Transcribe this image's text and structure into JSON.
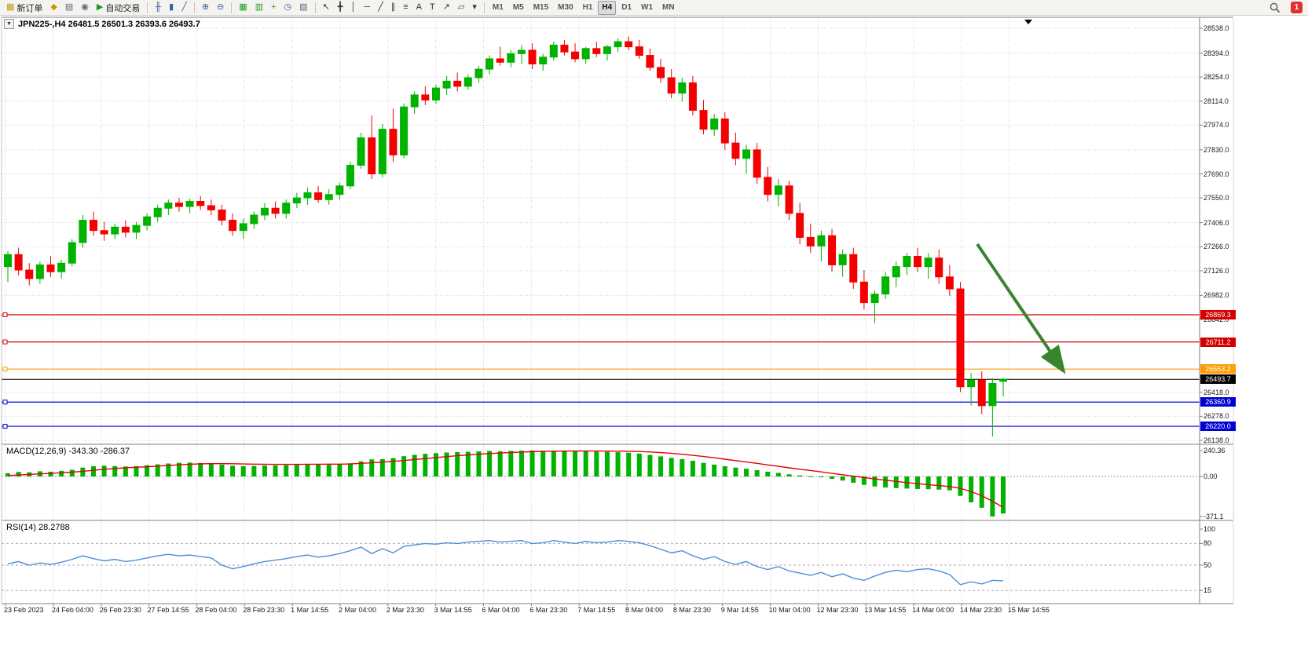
{
  "toolbar": {
    "buttons": [
      {
        "name": "new-order-button",
        "glyph": "▦",
        "glyph_color": "#c8960c",
        "label": "新订单"
      },
      {
        "name": "profiles-button",
        "glyph": "◆",
        "glyph_color": "#c8960c"
      },
      {
        "name": "print-button",
        "glyph": "▤",
        "glyph_color": "#5a6a7a"
      },
      {
        "name": "alerts-button",
        "glyph": "◉",
        "glyph_color": "#5a6a7a"
      },
      {
        "name": "autotrading-button",
        "glyph": "▶",
        "glyph_color": "#1e9c1e",
        "label": "自动交易"
      },
      {
        "separator": true
      },
      {
        "name": "bar-chart-button",
        "glyph": "╫",
        "glyph_color": "#3a5f9e"
      },
      {
        "name": "candlestick-chart-button",
        "glyph": "▮",
        "glyph_color": "#3a5f9e"
      },
      {
        "name": "line-chart-button",
        "glyph": "╱",
        "glyph_color": "#3a5f9e"
      },
      {
        "separator": true
      },
      {
        "name": "zoom-in-button",
        "glyph": "⊕",
        "glyph_color": "#3a5f9e"
      },
      {
        "name": "zoom-out-button",
        "glyph": "⊖",
        "glyph_color": "#3a5f9e"
      },
      {
        "separator": true
      },
      {
        "name": "tile-windows-button",
        "glyph": "▦",
        "glyph_color": "#1e9c1e"
      },
      {
        "name": "new-chart-button",
        "glyph": "▥",
        "glyph_color": "#1e9c1e"
      },
      {
        "name": "indicators-button",
        "glyph": "+",
        "glyph_color": "#1e9c1e"
      },
      {
        "name": "period-button",
        "glyph": "◷",
        "glyph_color": "#3a5f9e"
      },
      {
        "name": "template-button",
        "glyph": "▨",
        "glyph_color": "#5a6a7a"
      },
      {
        "separator": true
      },
      {
        "name": "cursor-button",
        "glyph": "↖",
        "glyph_color": "#333333"
      },
      {
        "name": "crosshair-button",
        "glyph": "╋",
        "glyph_color": "#333333"
      },
      {
        "name": "vertical-line-button",
        "glyph": "│",
        "glyph_color": "#333333"
      },
      {
        "name": "horizontal-line-button",
        "glyph": "─",
        "glyph_color": "#333333"
      },
      {
        "name": "trendline-button",
        "glyph": "╱",
        "glyph_color": "#333333"
      },
      {
        "name": "channel-button",
        "glyph": "∥",
        "glyph_color": "#333333"
      },
      {
        "name": "fibonacci-button",
        "glyph": "≡",
        "glyph_color": "#333333"
      },
      {
        "name": "text-button",
        "glyph": "A",
        "glyph_color": "#333333"
      },
      {
        "name": "label-button",
        "glyph": "T",
        "glyph_color": "#333333"
      },
      {
        "name": "arrows-button",
        "glyph": "↗",
        "glyph_color": "#333333"
      },
      {
        "name": "shapes-button",
        "glyph": "▱",
        "glyph_color": "#333333"
      },
      {
        "name": "objects-dropdown",
        "glyph": "▾",
        "glyph_color": "#333333"
      },
      {
        "separator": true
      }
    ],
    "timeframes": [
      "M1",
      "M5",
      "M15",
      "M30",
      "H1",
      "H4",
      "D1",
      "W1",
      "MN"
    ],
    "active_timeframe": "H4",
    "notification_count": "1"
  },
  "chart": {
    "window_title": "JPN225-,H4 26481.5 26501.3 26393.6 26493.7",
    "window_icon": "▼",
    "price_axis_ticks": [
      "28538.0",
      "28394.0",
      "28254.0",
      "28114.0",
      "27974.0",
      "27830.0",
      "27690.0",
      "27550.0",
      "27406.0",
      "27266.0",
      "27126.0",
      "26982.0",
      "26842.0",
      "26418.0",
      "26278.0",
      "26138.0"
    ],
    "macd_axis": [
      "240.36",
      "0.00",
      "-371.1"
    ],
    "rsi_axis": [
      "100",
      "80",
      "50",
      "15"
    ],
    "levels": [
      {
        "label": "26869.3",
        "value": 26869.3,
        "color": "#d40000"
      },
      {
        "label": "26711.2",
        "value": 26711.2,
        "color": "#d40000"
      },
      {
        "label": "26553.2",
        "value": 26553.2,
        "color": "#ff9c00"
      },
      {
        "label": "26493.7",
        "value": 26493.7,
        "color": "#000000",
        "current": true
      },
      {
        "label": "26360.9",
        "value": 26360.9,
        "color": "#0000d4"
      },
      {
        "label": "26220.0",
        "value": 26220.0,
        "color": "#0000d4"
      }
    ]
  },
  "chart_data": {
    "type": "candlestick",
    "symbol": "JPN225-",
    "timeframe": "H4",
    "ohlc_header": {
      "open": "26481.5",
      "high": "26501.3",
      "low": "26393.6",
      "close": "26493.7"
    },
    "price_range": [
      26138,
      28538
    ],
    "time_labels": [
      "23 Feb 2023",
      "24 Feb 04:00",
      "26 Feb 23:30",
      "27 Feb 14:55",
      "28 Feb 04:00",
      "28 Feb 23:30",
      "1 Mar 14:55",
      "2 Mar 04:00",
      "2 Mar 23:30",
      "3 Mar 14:55",
      "6 Mar 04:00",
      "6 Mar 23:30",
      "7 Mar 14:55",
      "8 Mar 04:00",
      "8 Mar 23:30",
      "9 Mar 14:55",
      "10 Mar 04:00",
      "12 Mar 23:30",
      "13 Mar 14:55",
      "14 Mar 04:00",
      "14 Mar 23:30",
      "15 Mar 14:55"
    ],
    "candles": [
      [
        27150,
        27240,
        27060,
        27220
      ],
      [
        27220,
        27260,
        27100,
        27130
      ],
      [
        27130,
        27170,
        27040,
        27080
      ],
      [
        27080,
        27180,
        27050,
        27160
      ],
      [
        27160,
        27210,
        27090,
        27120
      ],
      [
        27120,
        27190,
        27080,
        27170
      ],
      [
        27170,
        27310,
        27150,
        27290
      ],
      [
        27290,
        27450,
        27260,
        27420
      ],
      [
        27420,
        27470,
        27330,
        27360
      ],
      [
        27360,
        27410,
        27300,
        27340
      ],
      [
        27340,
        27400,
        27310,
        27380
      ],
      [
        27380,
        27420,
        27320,
        27350
      ],
      [
        27350,
        27410,
        27310,
        27390
      ],
      [
        27390,
        27460,
        27360,
        27440
      ],
      [
        27440,
        27510,
        27410,
        27490
      ],
      [
        27490,
        27540,
        27450,
        27520
      ],
      [
        27520,
        27550,
        27470,
        27500
      ],
      [
        27500,
        27545,
        27460,
        27530
      ],
      [
        27530,
        27560,
        27480,
        27505
      ],
      [
        27505,
        27540,
        27450,
        27480
      ],
      [
        27480,
        27510,
        27390,
        27420
      ],
      [
        27420,
        27460,
        27330,
        27360
      ],
      [
        27360,
        27430,
        27310,
        27400
      ],
      [
        27400,
        27470,
        27370,
        27450
      ],
      [
        27450,
        27520,
        27420,
        27490
      ],
      [
        27490,
        27530,
        27430,
        27460
      ],
      [
        27460,
        27540,
        27430,
        27520
      ],
      [
        27520,
        27580,
        27490,
        27550
      ],
      [
        27550,
        27610,
        27510,
        27580
      ],
      [
        27580,
        27620,
        27520,
        27540
      ],
      [
        27540,
        27600,
        27510,
        27570
      ],
      [
        27570,
        27640,
        27540,
        27620
      ],
      [
        27620,
        27760,
        27600,
        27740
      ],
      [
        27740,
        27930,
        27720,
        27900
      ],
      [
        27900,
        28030,
        27660,
        27690
      ],
      [
        27690,
        27980,
        27670,
        27950
      ],
      [
        27950,
        28070,
        27760,
        27800
      ],
      [
        27800,
        28100,
        27780,
        28080
      ],
      [
        28080,
        28170,
        28040,
        28150
      ],
      [
        28150,
        28200,
        28090,
        28120
      ],
      [
        28120,
        28210,
        28100,
        28190
      ],
      [
        28190,
        28260,
        28150,
        28230
      ],
      [
        28230,
        28280,
        28170,
        28200
      ],
      [
        28200,
        28270,
        28180,
        28250
      ],
      [
        28250,
        28320,
        28220,
        28300
      ],
      [
        28300,
        28380,
        28270,
        28360
      ],
      [
        28360,
        28430,
        28320,
        28340
      ],
      [
        28340,
        28410,
        28310,
        28390
      ],
      [
        28390,
        28440,
        28330,
        28410
      ],
      [
        28410,
        28450,
        28300,
        28330
      ],
      [
        28330,
        28390,
        28290,
        28370
      ],
      [
        28370,
        28460,
        28350,
        28440
      ],
      [
        28440,
        28470,
        28380,
        28400
      ],
      [
        28400,
        28450,
        28340,
        28360
      ],
      [
        28360,
        28430,
        28330,
        28420
      ],
      [
        28420,
        28460,
        28370,
        28390
      ],
      [
        28390,
        28440,
        28350,
        28430
      ],
      [
        28430,
        28480,
        28400,
        28460
      ],
      [
        28460,
        28490,
        28410,
        28430
      ],
      [
        28430,
        28470,
        28360,
        28380
      ],
      [
        28380,
        28420,
        28290,
        28310
      ],
      [
        28310,
        28360,
        28220,
        28250
      ],
      [
        28250,
        28300,
        28130,
        28160
      ],
      [
        28160,
        28250,
        28110,
        28220
      ],
      [
        28220,
        28260,
        28030,
        28060
      ],
      [
        28060,
        28120,
        27920,
        27950
      ],
      [
        27950,
        28040,
        27910,
        28010
      ],
      [
        28010,
        28050,
        27830,
        27870
      ],
      [
        27870,
        27930,
        27740,
        27780
      ],
      [
        27780,
        27860,
        27690,
        27830
      ],
      [
        27830,
        27870,
        27630,
        27670
      ],
      [
        27670,
        27730,
        27530,
        27570
      ],
      [
        27570,
        27660,
        27500,
        27620
      ],
      [
        27620,
        27650,
        27420,
        27460
      ],
      [
        27460,
        27520,
        27280,
        27320
      ],
      [
        27320,
        27400,
        27230,
        27270
      ],
      [
        27270,
        27360,
        27180,
        27330
      ],
      [
        27330,
        27370,
        27120,
        27160
      ],
      [
        27160,
        27250,
        27090,
        27220
      ],
      [
        27220,
        27260,
        27020,
        27060
      ],
      [
        27060,
        27130,
        26900,
        26940
      ],
      [
        26940,
        27010,
        26820,
        26990
      ],
      [
        26990,
        27120,
        26960,
        27090
      ],
      [
        27090,
        27180,
        27030,
        27150
      ],
      [
        27150,
        27230,
        27100,
        27210
      ],
      [
        27210,
        27260,
        27120,
        27150
      ],
      [
        27150,
        27230,
        27080,
        27200
      ],
      [
        27200,
        27250,
        27050,
        27090
      ],
      [
        27090,
        27160,
        26980,
        27020
      ],
      [
        27020,
        27060,
        26420,
        26450
      ],
      [
        26450,
        26530,
        26340,
        26490
      ],
      [
        26490,
        26540,
        26290,
        26340
      ],
      [
        26340,
        26500,
        26160,
        26470
      ],
      [
        26481.5,
        26501.3,
        26393.6,
        26493.7
      ]
    ],
    "indicators": {
      "macd": {
        "label": "MACD(12,26,9) -343.30 -286.37",
        "params": "12,26,9",
        "main_value": -343.3,
        "signal_value": -286.37,
        "range": [
          -371.1,
          240.36
        ],
        "histogram": [
          30,
          42,
          38,
          48,
          44,
          52,
          62,
          82,
          95,
          100,
          96,
          92,
          96,
          104,
          112,
          120,
          126,
          128,
          125,
          120,
          110,
          100,
          96,
          98,
          102,
          103,
          105,
          108,
          112,
          110,
          108,
          112,
          122,
          140,
          158,
          160,
          170,
          188,
          200,
          210,
          216,
          222,
          226,
          229,
          232,
          236,
          234,
          237,
          239,
          240.4,
          239,
          240,
          238,
          236,
          233,
          230,
          228,
          225,
          220,
          212,
          200,
          186,
          172,
          160,
          145,
          126,
          110,
          95,
          82,
          72,
          58,
          44,
          33,
          20,
          10,
          2,
          -8,
          -22,
          -38,
          -58,
          -78,
          -92,
          -102,
          -108,
          -112,
          -116,
          -118,
          -122,
          -128,
          -180,
          -240,
          -290,
          -371.1,
          -343.3
        ],
        "signal": [
          8,
          14,
          19,
          24,
          29,
          34,
          40,
          48,
          57,
          66,
          74,
          80,
          85,
          90,
          96,
          102,
          108,
          113,
          117,
          119,
          119,
          118,
          116,
          114,
          113,
          112,
          112,
          112,
          113,
          113,
          114,
          114,
          116,
          121,
          127,
          133,
          140,
          148,
          157,
          166,
          175,
          184,
          192,
          199,
          206,
          212,
          217,
          222,
          226,
          230,
          232,
          234,
          235,
          236,
          236,
          236,
          235,
          234,
          233,
          231,
          227,
          221,
          214,
          206,
          196,
          185,
          173,
          160,
          147,
          134,
          121,
          107,
          94,
          80,
          67,
          55,
          42,
          29,
          16,
          3,
          -10,
          -23,
          -35,
          -46,
          -57,
          -67,
          -76,
          -85,
          -93,
          -110,
          -140,
          -178,
          -230,
          -286.4
        ]
      },
      "rsi": {
        "label": "RSI(14) 28.2788",
        "period": 14,
        "value": 28.2788,
        "levels": [
          80,
          50,
          15
        ],
        "values": [
          52,
          55,
          50,
          53,
          51,
          54,
          58,
          63,
          59,
          56,
          58,
          55,
          57,
          60,
          63,
          65,
          63,
          64,
          62,
          60,
          50,
          45,
          48,
          52,
          55,
          57,
          59,
          62,
          64,
          61,
          63,
          66,
          70,
          75,
          66,
          73,
          67,
          76,
          78,
          80,
          79,
          81,
          80,
          82,
          83,
          84,
          82,
          83,
          84,
          80,
          81,
          84,
          82,
          80,
          83,
          81,
          82,
          84,
          83,
          81,
          77,
          72,
          67,
          70,
          63,
          58,
          62,
          55,
          51,
          55,
          48,
          44,
          48,
          42,
          39,
          36,
          40,
          34,
          38,
          32,
          29,
          35,
          40,
          43,
          41,
          44,
          45,
          42,
          37,
          23,
          27,
          24,
          29,
          28.3
        ]
      }
    },
    "annotations": [
      {
        "type": "arrow",
        "direction": "down-right",
        "color": "#38842f"
      }
    ]
  },
  "colors": {
    "up": "#00b300",
    "down": "#f40000",
    "grid": "#d2d2d2",
    "macd_hist": "#00b300",
    "macd_signal": "#e80000",
    "rsi": "#4a90d9",
    "arrow": "#38842f",
    "panel_border": "#808080"
  }
}
